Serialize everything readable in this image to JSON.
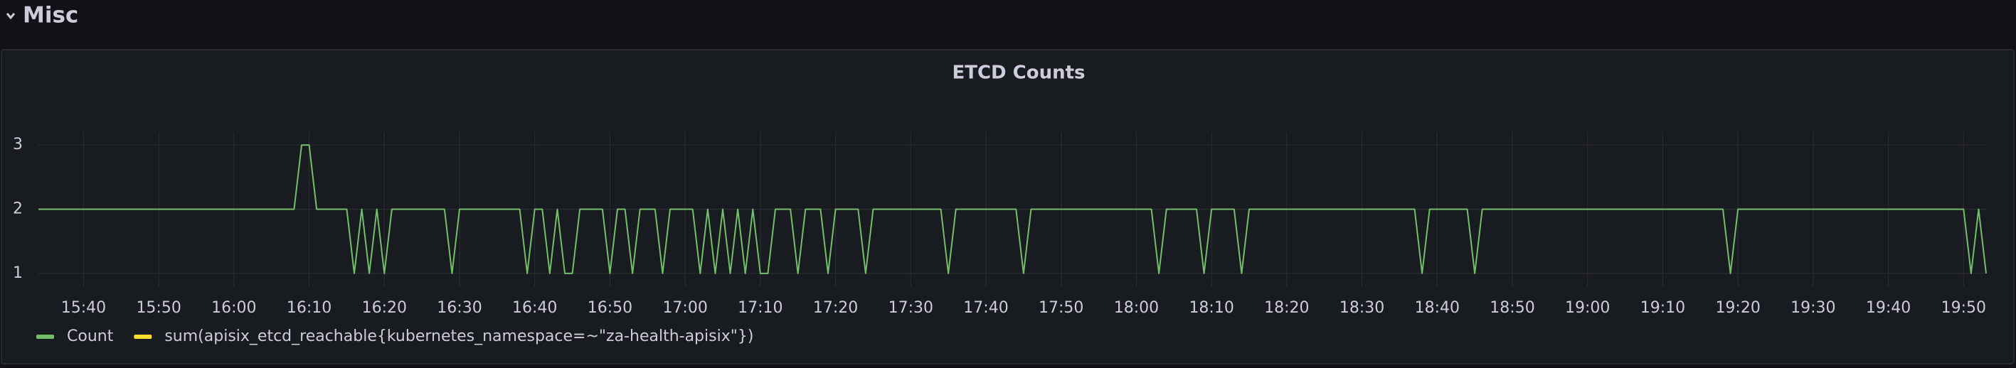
{
  "section": "Misc",
  "chart_data": {
    "type": "line",
    "title": "ETCD Counts",
    "xlim": [
      "15:34",
      "19:53"
    ],
    "xticks": [
      "15:40",
      "15:50",
      "16:00",
      "16:10",
      "16:20",
      "16:30",
      "16:40",
      "16:50",
      "17:00",
      "17:10",
      "17:20",
      "17:30",
      "17:40",
      "17:50",
      "18:00",
      "18:10",
      "18:20",
      "18:30",
      "18:40",
      "18:50",
      "19:00",
      "19:10",
      "19:20",
      "19:30",
      "19:40",
      "19:50"
    ],
    "ylim": [
      0.8,
      3.2
    ],
    "yticks": [
      1,
      2,
      3
    ],
    "grid": true,
    "series": [
      {
        "name": "Count",
        "color": "#73bf69",
        "x": [
          "15:34",
          "16:08",
          "16:09",
          "16:10",
          "16:11",
          "16:15",
          "16:16",
          "16:17",
          "16:18",
          "16:19",
          "16:20",
          "16:21",
          "16:28",
          "16:29",
          "16:30",
          "16:38",
          "16:39",
          "16:40",
          "16:41",
          "16:42",
          "16:43",
          "16:44",
          "16:45",
          "16:46",
          "16:49",
          "16:50",
          "16:51",
          "16:52",
          "16:53",
          "16:54",
          "16:56",
          "16:57",
          "16:58",
          "17:01",
          "17:02",
          "17:03",
          "17:04",
          "17:05",
          "17:06",
          "17:07",
          "17:08",
          "17:09",
          "17:10",
          "17:11",
          "17:12",
          "17:14",
          "17:15",
          "17:16",
          "17:18",
          "17:19",
          "17:20",
          "17:23",
          "17:24",
          "17:25",
          "17:34",
          "17:35",
          "17:36",
          "17:44",
          "17:45",
          "17:46",
          "18:02",
          "18:03",
          "18:04",
          "18:08",
          "18:09",
          "18:10",
          "18:13",
          "18:14",
          "18:15",
          "18:37",
          "18:38",
          "18:39",
          "18:44",
          "18:45",
          "18:46",
          "19:18",
          "19:19",
          "19:20",
          "19:50",
          "19:51",
          "19:52",
          "19:53"
        ],
        "values": [
          2,
          2,
          3,
          3,
          2,
          2,
          1,
          2,
          1,
          2,
          1,
          2,
          2,
          1,
          2,
          2,
          1,
          2,
          2,
          1,
          2,
          1,
          1,
          2,
          2,
          1,
          2,
          2,
          1,
          2,
          2,
          1,
          2,
          2,
          1,
          2,
          1,
          2,
          1,
          2,
          1,
          2,
          1,
          1,
          2,
          2,
          1,
          2,
          2,
          1,
          2,
          2,
          1,
          2,
          2,
          1,
          2,
          2,
          1,
          2,
          2,
          1,
          2,
          2,
          1,
          2,
          2,
          1,
          2,
          2,
          1,
          2,
          2,
          1,
          2,
          2,
          1,
          2,
          2,
          1,
          2,
          1
        ]
      },
      {
        "name": "sum(apisix_etcd_reachable{kubernetes_namespace=~\"za-health-apisix\"})",
        "color": "#fade2a",
        "x": [],
        "values": []
      }
    ]
  }
}
